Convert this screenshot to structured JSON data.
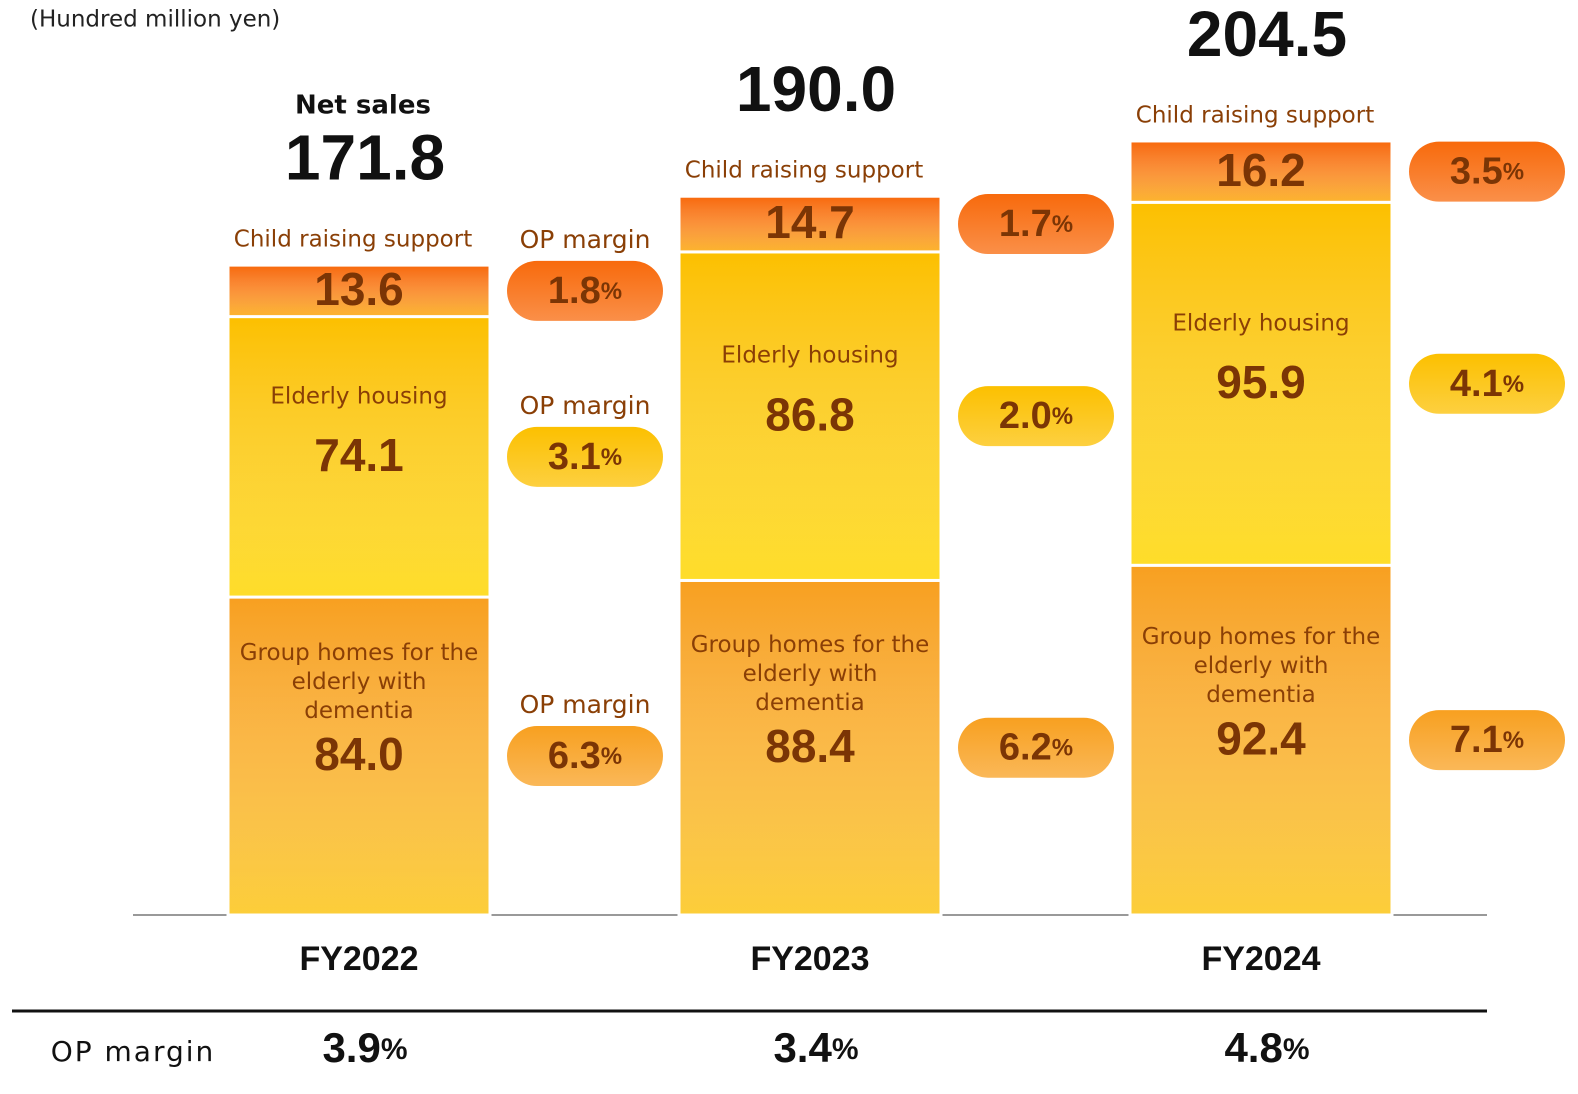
{
  "chart_data": {
    "type": "stacked_bar",
    "unit_label": "(Hundred million yen)",
    "total_label": "Net sales",
    "categories": [
      "FY2022",
      "FY2023",
      "FY2024"
    ],
    "totals": [
      171.8,
      190.0,
      204.5
    ],
    "totals_labels": [
      "171.8",
      "190.0",
      "204.5"
    ],
    "op_margin_label": "OP margin",
    "series": [
      {
        "name": "Group homes for the elderly with dementia",
        "color": "#f8a020",
        "values": [
          84.0,
          88.4,
          92.4
        ],
        "value_labels": [
          "84.0",
          "88.4",
          "92.4"
        ],
        "op_margin": [
          6.3,
          6.2,
          7.1
        ],
        "op_margin_labels": [
          "6.3%",
          "6.2%",
          "7.1%"
        ]
      },
      {
        "name": "Elderly housing",
        "color": "#fcc000",
        "values": [
          74.1,
          86.8,
          95.9
        ],
        "value_labels": [
          "74.1",
          "86.8",
          "95.9"
        ],
        "op_margin": [
          3.1,
          2.0,
          4.1
        ],
        "op_margin_labels": [
          "3.1%",
          "2.0%",
          "4.1%"
        ]
      },
      {
        "name": "Child raising support",
        "color": "#f86a0c",
        "values": [
          13.6,
          14.7,
          16.2
        ],
        "value_labels": [
          "13.6",
          "14.7",
          "16.2"
        ],
        "op_margin": [
          1.8,
          1.7,
          3.5
        ],
        "op_margin_labels": [
          "1.8%",
          "1.7%",
          "3.5%"
        ]
      }
    ],
    "op_margin_totals": [
      3.9,
      3.4,
      4.8
    ],
    "op_margin_totals_labels": [
      "3.9%",
      "3.4%",
      "4.8%"
    ]
  }
}
